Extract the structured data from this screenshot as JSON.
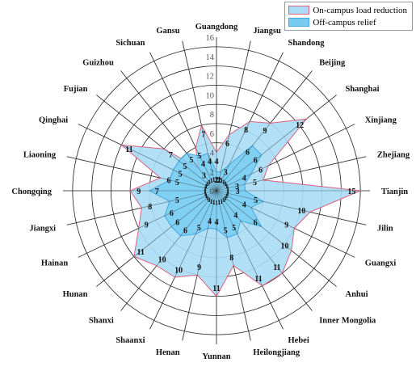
{
  "chart_data": {
    "type": "radar",
    "axis_labels": [
      "0",
      "2",
      "4",
      "6",
      "8",
      "10",
      "12",
      "14",
      "16"
    ],
    "rmax": 16,
    "categories": [
      "Guangdong",
      "Jiangsu",
      "Shandong",
      "Beijing",
      "Shanghai",
      "Xinjiang",
      "Zhejiang",
      "Tianjin",
      "Jilin",
      "Guangxi",
      "Anhui",
      "Inner Mongolia",
      "Hebei",
      "Heilongjiang",
      "Yunnan",
      "Henan",
      "Shaanxi",
      "Shanxi",
      "Hunan",
      "Hainan",
      "Jiangxi",
      "Chongqing",
      "Liaoning",
      "Qinghai",
      "Fujian",
      "Guizhou",
      "Sichuan",
      "Gansu"
    ],
    "series": [
      {
        "name": "On-campus load reduction",
        "color": "#a8ddf5",
        "stroke": "#e0607e",
        "values": [
          4,
          6,
          8,
          9,
          12,
          6,
          5,
          15,
          10,
          9,
          10,
          11,
          11,
          8,
          11,
          9,
          10,
          10,
          11,
          9,
          8,
          9,
          6,
          11,
          7,
          3,
          5,
          7
        ]
      },
      {
        "name": "Off-campus relief",
        "color": "#78ccf2",
        "stroke": "#44a8e0",
        "values": [
          2,
          2,
          3,
          6,
          6,
          4,
          3,
          3,
          5,
          4,
          6,
          4,
          5,
          5,
          4,
          4,
          5,
          6,
          6,
          6,
          5,
          7,
          5,
          5,
          5,
          5,
          4,
          4
        ]
      }
    ],
    "data_labels_inner": [
      2,
      2,
      3,
      6,
      6,
      4,
      3,
      3,
      5,
      4,
      6,
      4,
      5,
      5,
      4,
      4,
      5,
      6,
      6,
      6,
      5,
      7,
      5,
      5,
      5,
      5,
      4,
      4
    ],
    "small_inner_labels": [
      1,
      1,
      1,
      1,
      1,
      1,
      1,
      1,
      1,
      1,
      1,
      1,
      1,
      1,
      1,
      1,
      1,
      1,
      1,
      1,
      1,
      1,
      1,
      1,
      1,
      1,
      1,
      1
    ]
  }
}
